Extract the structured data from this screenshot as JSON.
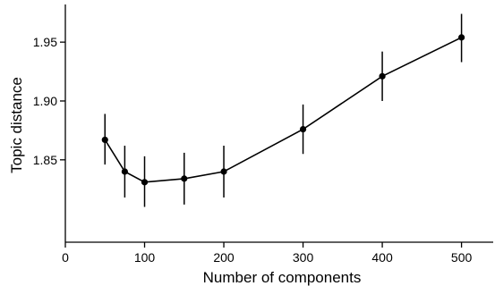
{
  "chart_data": {
    "type": "line",
    "xlabel": "Number of components",
    "ylabel": "Topic distance",
    "xlim": [
      0,
      540
    ],
    "ylim": [
      1.78,
      1.982
    ],
    "x_ticks": [
      0,
      100,
      200,
      300,
      400,
      500
    ],
    "x_tick_labels": [
      "0",
      "100",
      "200",
      "300",
      "400",
      "500"
    ],
    "y_ticks": [
      1.85,
      1.9,
      1.95
    ],
    "y_tick_labels": [
      "1.85",
      "1.90",
      "1.95"
    ],
    "grid": false,
    "series": [
      {
        "x": [
          50,
          75,
          100,
          150,
          200,
          300,
          400,
          500
        ],
        "y": [
          1.867,
          1.84,
          1.831,
          1.834,
          1.84,
          1.876,
          1.921,
          1.954
        ],
        "error_low": [
          1.846,
          1.818,
          1.81,
          1.812,
          1.818,
          1.855,
          1.9,
          1.933
        ],
        "error_high": [
          1.889,
          1.862,
          1.853,
          1.856,
          1.862,
          1.897,
          1.942,
          1.974
        ]
      }
    ],
    "colors": {
      "line": "#000000",
      "marker": "#000000"
    }
  }
}
